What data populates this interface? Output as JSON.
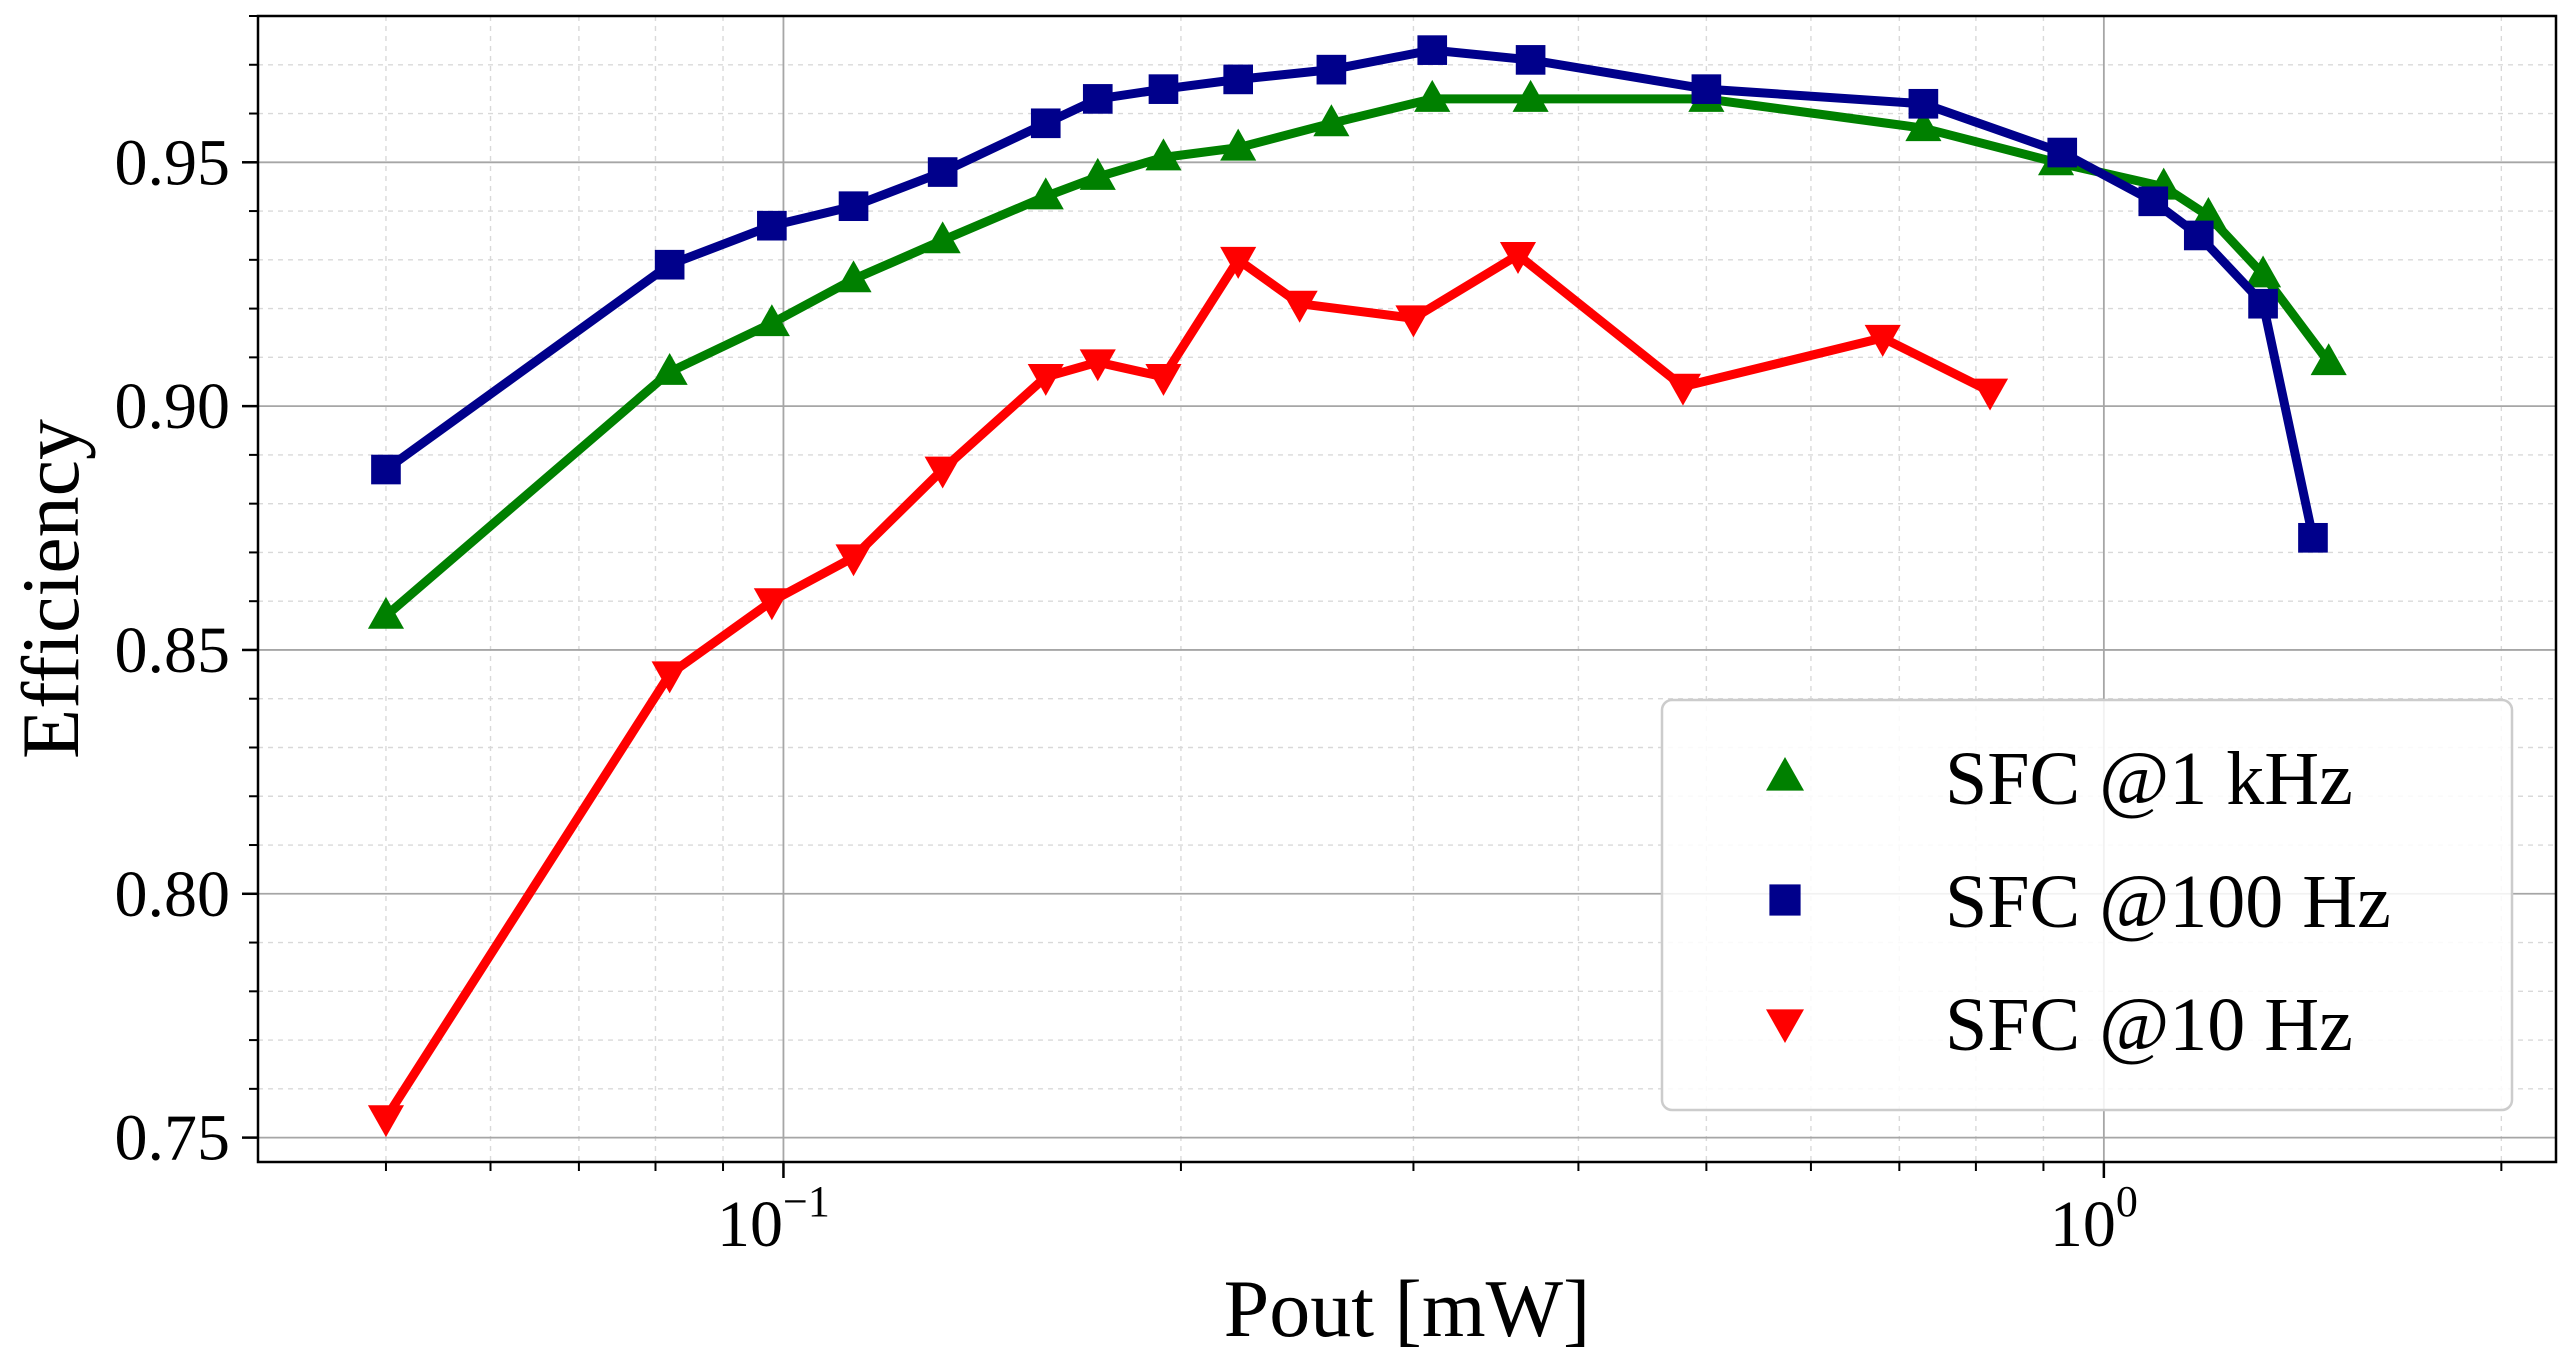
{
  "chart_data": {
    "type": "line",
    "title": "",
    "xlabel": "Pout [mW]",
    "ylabel": "Efficiency",
    "xscale": "log",
    "xlim": [
      0.04,
      2.2
    ],
    "ylim": [
      0.745,
      0.98
    ],
    "xticks": [
      {
        "value": 0.1,
        "base": "10",
        "exp": "−1"
      },
      {
        "value": 1,
        "base": "10",
        "exp": "0"
      }
    ],
    "yticks": [
      {
        "value": 0.75,
        "label": "0.75"
      },
      {
        "value": 0.8,
        "label": "0.80"
      },
      {
        "value": 0.85,
        "label": "0.85"
      },
      {
        "value": 0.9,
        "label": "0.90"
      },
      {
        "value": 0.95,
        "label": "0.95"
      }
    ],
    "grid": true,
    "legend_position": "lower-right",
    "series": [
      {
        "name": "SFC @1 kHz",
        "color": "#008000",
        "marker": "triangle-up",
        "x": [
          0.05,
          0.082,
          0.098,
          0.113,
          0.132,
          0.158,
          0.173,
          0.194,
          0.221,
          0.26,
          0.31,
          0.368,
          0.5,
          0.73,
          0.92,
          1.11,
          1.2,
          1.32,
          1.48
        ],
        "y": [
          0.857,
          0.907,
          0.917,
          0.926,
          0.934,
          0.943,
          0.947,
          0.951,
          0.953,
          0.958,
          0.963,
          0.963,
          0.963,
          0.957,
          0.95,
          0.945,
          0.939,
          0.927,
          0.909
        ]
      },
      {
        "name": "SFC @100 Hz",
        "color": "#00008b",
        "marker": "square",
        "x": [
          0.05,
          0.082,
          0.098,
          0.113,
          0.132,
          0.158,
          0.173,
          0.194,
          0.221,
          0.26,
          0.31,
          0.368,
          0.5,
          0.73,
          0.93,
          1.09,
          1.18,
          1.32,
          1.44
        ],
        "y": [
          0.887,
          0.929,
          0.937,
          0.941,
          0.948,
          0.958,
          0.963,
          0.965,
          0.967,
          0.969,
          0.973,
          0.971,
          0.965,
          0.962,
          0.952,
          0.942,
          0.935,
          0.921,
          0.873
        ]
      },
      {
        "name": "SFC @10 Hz",
        "color": "#ff0000",
        "marker": "triangle-down",
        "x": [
          0.05,
          0.082,
          0.098,
          0.113,
          0.132,
          0.158,
          0.173,
          0.194,
          0.221,
          0.246,
          0.3,
          0.36,
          0.48,
          0.68,
          0.82
        ],
        "y": [
          0.754,
          0.845,
          0.86,
          0.869,
          0.887,
          0.906,
          0.909,
          0.906,
          0.93,
          0.921,
          0.918,
          0.931,
          0.904,
          0.914,
          0.903
        ]
      }
    ]
  }
}
